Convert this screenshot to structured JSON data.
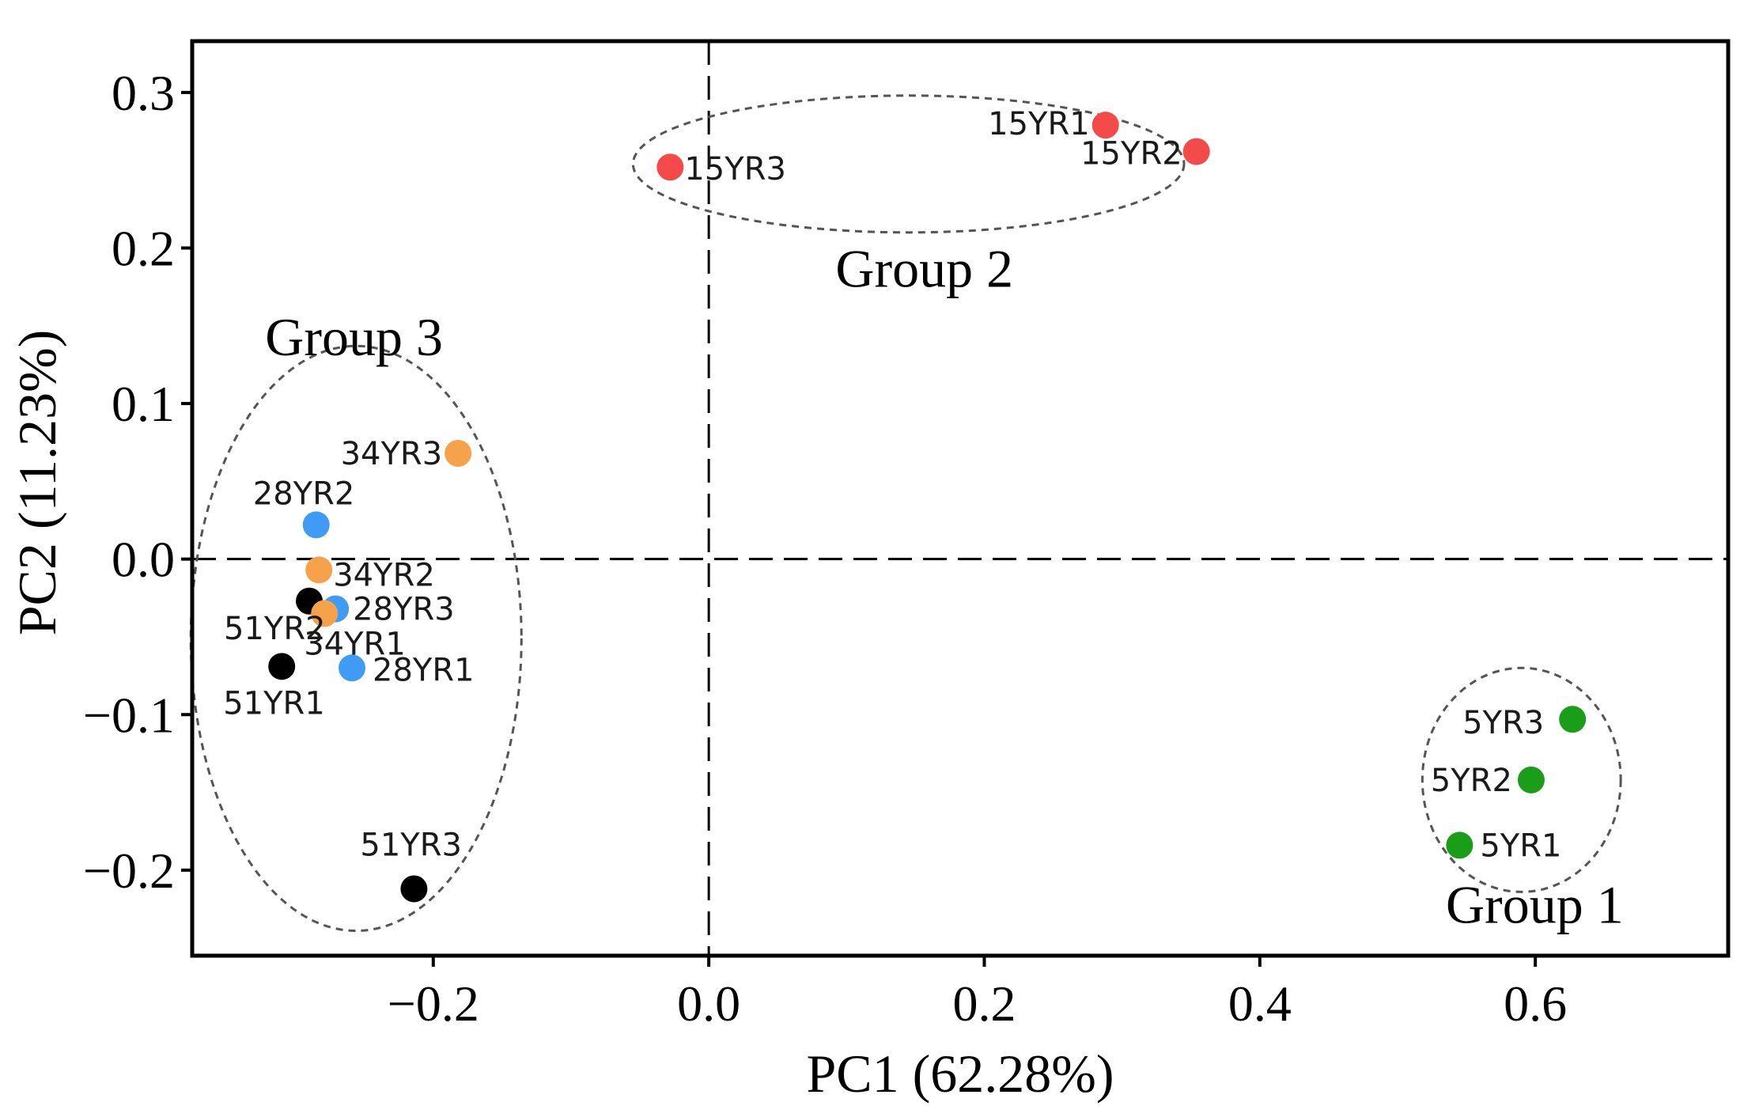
{
  "chart_data": {
    "type": "scatter",
    "title": "",
    "xlabel": "PC1 (62.28%)",
    "ylabel": "PC2 (11.23%)",
    "xlim": [
      -0.375,
      0.74
    ],
    "ylim": [
      -0.255,
      0.333
    ],
    "xticks": [
      -0.2,
      0.0,
      0.2,
      0.4,
      0.6
    ],
    "xtick_labels": [
      "−0.2",
      "0.0",
      "0.2",
      "0.4",
      "0.6"
    ],
    "yticks": [
      -0.2,
      -0.1,
      0.0,
      0.1,
      0.2,
      0.3
    ],
    "ytick_labels": [
      "−0.2",
      "−0.1",
      "0.0",
      "0.1",
      "0.2",
      "0.3"
    ],
    "grid": false,
    "reference_lines": {
      "x": 0.0,
      "y": 0.0,
      "style": "dashed"
    },
    "colors": {
      "5YR": "#1a9e1a",
      "15YR": "#f44a4a",
      "28YR": "#3f9bf4",
      "34YR": "#f6a24b",
      "51YR": "#000000"
    },
    "points": [
      {
        "label": "5YR1",
        "group": "5YR",
        "x": 0.545,
        "y": -0.184
      },
      {
        "label": "5YR2",
        "group": "5YR",
        "x": 0.597,
        "y": -0.142
      },
      {
        "label": "5YR3",
        "group": "5YR",
        "x": 0.627,
        "y": -0.103
      },
      {
        "label": "15YR1",
        "group": "15YR",
        "x": 0.288,
        "y": 0.279
      },
      {
        "label": "15YR2",
        "group": "15YR",
        "x": 0.354,
        "y": 0.262
      },
      {
        "label": "15YR3",
        "group": "15YR",
        "x": -0.028,
        "y": 0.252
      },
      {
        "label": "28YR1",
        "group": "28YR",
        "x": -0.259,
        "y": -0.07
      },
      {
        "label": "28YR2",
        "group": "28YR",
        "x": -0.285,
        "y": 0.022
      },
      {
        "label": "28YR3",
        "group": "28YR",
        "x": -0.271,
        "y": -0.032
      },
      {
        "label": "34YR1",
        "group": "34YR",
        "x": -0.279,
        "y": -0.035
      },
      {
        "label": "34YR2",
        "group": "34YR",
        "x": -0.283,
        "y": -0.007
      },
      {
        "label": "34YR3",
        "group": "34YR",
        "x": -0.182,
        "y": 0.068
      },
      {
        "label": "51YR1",
        "group": "51YR",
        "x": -0.31,
        "y": -0.069
      },
      {
        "label": "51YR2",
        "group": "51YR",
        "x": -0.29,
        "y": -0.027
      },
      {
        "label": "51YR3",
        "group": "51YR",
        "x": -0.214,
        "y": -0.212
      }
    ],
    "groups": [
      {
        "name": "Group 1",
        "cx": 0.59,
        "cy": -0.142,
        "rx": 0.072,
        "ry": 0.072,
        "label_x": 0.535,
        "label_y": -0.234
      },
      {
        "name": "Group 2",
        "cx": 0.145,
        "cy": 0.254,
        "rx": 0.2,
        "ry": 0.044,
        "label_x": 0.092,
        "label_y": 0.175
      },
      {
        "name": "Group 3",
        "cx": -0.256,
        "cy": -0.051,
        "rx": 0.12,
        "ry": 0.188,
        "label_x": -0.322,
        "label_y": 0.131
      }
    ]
  }
}
